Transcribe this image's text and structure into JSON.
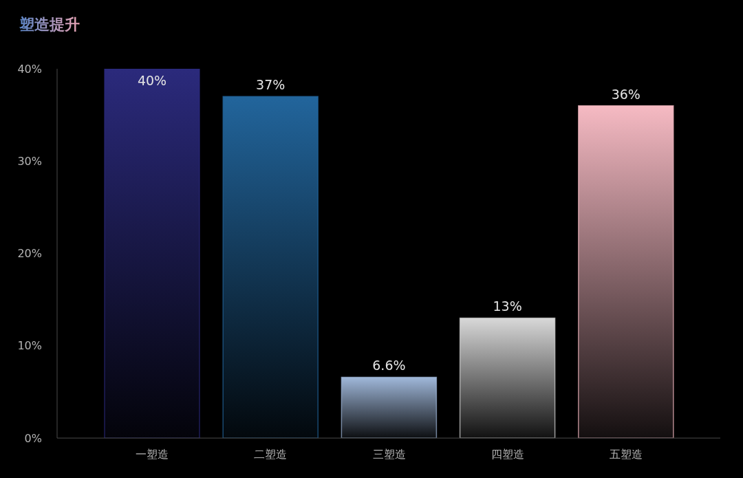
{
  "chart_data": {
    "type": "bar",
    "title": "塑造提升",
    "categories": [
      "一塑造",
      "二塑造",
      "三塑造",
      "四塑造",
      "五塑造"
    ],
    "values": [
      40,
      37,
      6.6,
      13,
      36
    ],
    "colors": [
      "#2b2a7c",
      "#22659c",
      "#a0b8da",
      "#d8d8d8",
      "#f6bac3"
    ],
    "value_labels": [
      "40%",
      "37%",
      "6.6%",
      "13%",
      "36%"
    ],
    "ylim": [
      0,
      40
    ],
    "yticks": [
      {
        "value": 0,
        "label": "0%"
      },
      {
        "value": 10,
        "label": "10%"
      },
      {
        "value": 20,
        "label": "20%"
      },
      {
        "value": 30,
        "label": "30%"
      },
      {
        "value": 40,
        "label": "40%"
      }
    ]
  }
}
